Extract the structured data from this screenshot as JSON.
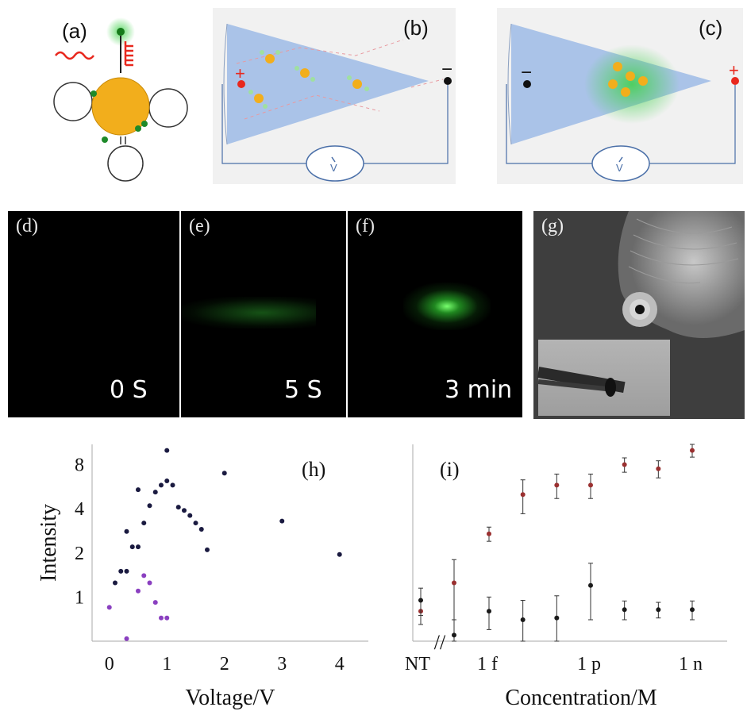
{
  "figure": {
    "panels": {
      "a": {
        "label": "(a)"
      },
      "b": {
        "label": "(b)",
        "electrode_left": "+",
        "electrode_right": "−",
        "meter": "V"
      },
      "c": {
        "label": "(c)",
        "electrode_left": "−",
        "electrode_right": "+",
        "meter": "V"
      },
      "d": {
        "label": "(d)",
        "time": "0 S"
      },
      "e": {
        "label": "(e)",
        "time": "5 S"
      },
      "f": {
        "label": "(f)",
        "time": "3 min"
      },
      "g": {
        "label": "(g)"
      },
      "h": {
        "label": "(h)"
      },
      "i": {
        "label": "(i)"
      }
    },
    "colors": {
      "nanopipette": "#aac3e8",
      "particle": "#f2ae1c",
      "fluorescence": "#3fd14a",
      "positive": "#e8281e",
      "series_dark": "#1a1a40",
      "series_purple": "#8a3fc0",
      "series_red": "#9a3030"
    }
  },
  "chart_data": [
    {
      "type": "scatter",
      "panel": "(h)",
      "xlabel": "Voltage/V",
      "ylabel": "Intensity",
      "xlim": [
        -0.3,
        4.5
      ],
      "ylim": [
        0.5,
        11
      ],
      "yscale": "log",
      "x_ticks": [
        0,
        1,
        2,
        3,
        4
      ],
      "y_ticks": [
        1,
        2,
        4,
        8
      ],
      "series": [
        {
          "color": "#1a1a40",
          "points": [
            [
              0.1,
              1.25
            ],
            [
              0.2,
              1.5
            ],
            [
              0.3,
              1.5
            ],
            [
              0.3,
              2.8
            ],
            [
              0.4,
              2.2
            ],
            [
              0.5,
              2.2
            ],
            [
              0.5,
              5.4
            ],
            [
              0.6,
              3.2
            ],
            [
              0.7,
              4.2
            ],
            [
              0.8,
              5.2
            ],
            [
              0.9,
              5.8
            ],
            [
              1.0,
              6.2
            ],
            [
              1.1,
              5.8
            ],
            [
              1.2,
              4.1
            ],
            [
              1.3,
              3.9
            ],
            [
              1.4,
              3.6
            ],
            [
              1.5,
              3.2
            ],
            [
              1.6,
              2.9
            ],
            [
              1.7,
              2.1
            ],
            [
              1.0,
              10
            ],
            [
              2.0,
              7.0
            ],
            [
              3.0,
              3.3
            ],
            [
              4.0,
              1.95
            ]
          ]
        },
        {
          "color": "#8a3fc0",
          "points": [
            [
              0.0,
              0.85
            ],
            [
              0.3,
              0.52
            ],
            [
              0.5,
              1.1
            ],
            [
              0.6,
              1.4
            ],
            [
              0.7,
              1.25
            ],
            [
              0.8,
              0.92
            ],
            [
              0.9,
              0.72
            ],
            [
              1.0,
              0.72
            ]
          ]
        }
      ]
    },
    {
      "type": "scatter",
      "panel": "(i)",
      "xlabel": "Concentration/M",
      "x_ticks": [
        "NT",
        "1 f",
        "1 p",
        "1 n"
      ],
      "yscale": "log",
      "ylim": [
        0.5,
        11
      ],
      "series": [
        {
          "color": "#9a3030",
          "points": [
            {
              "x": "NT",
              "y": 0.8,
              "err": 0.15
            },
            {
              "x": "NT2",
              "y": 1.25,
              "err": 0.55
            },
            {
              "x": 1e-15,
              "y": 2.7,
              "err": 0.3
            },
            {
              "x": 1e-14,
              "y": 5.0,
              "err": 1.3
            },
            {
              "x": 1e-13,
              "y": 5.8,
              "err": 1.1
            },
            {
              "x": 1e-12,
              "y": 5.8,
              "err": 1.1
            },
            {
              "x": 1e-11,
              "y": 8.0,
              "err": 0.9
            },
            {
              "x": 1e-10,
              "y": 7.5,
              "err": 1.0
            },
            {
              "x": 1e-09,
              "y": 10,
              "err": 1.0
            }
          ]
        },
        {
          "color": "#1a1a1a",
          "points": [
            {
              "x": "NT",
              "y": 0.95,
              "err": 0.2
            },
            {
              "x": "NT2",
              "y": 0.55,
              "err": 0.15
            },
            {
              "x": 1e-15,
              "y": 0.8,
              "err": 0.2
            },
            {
              "x": 1e-14,
              "y": 0.7,
              "err": 0.25
            },
            {
              "x": 1e-13,
              "y": 0.72,
              "err": 0.3
            },
            {
              "x": 1e-12,
              "y": 1.2,
              "err": 0.5
            },
            {
              "x": 1e-11,
              "y": 0.82,
              "err": 0.12
            },
            {
              "x": 1e-10,
              "y": 0.82,
              "err": 0.1
            },
            {
              "x": 1e-09,
              "y": 0.82,
              "err": 0.12
            }
          ]
        }
      ]
    }
  ]
}
